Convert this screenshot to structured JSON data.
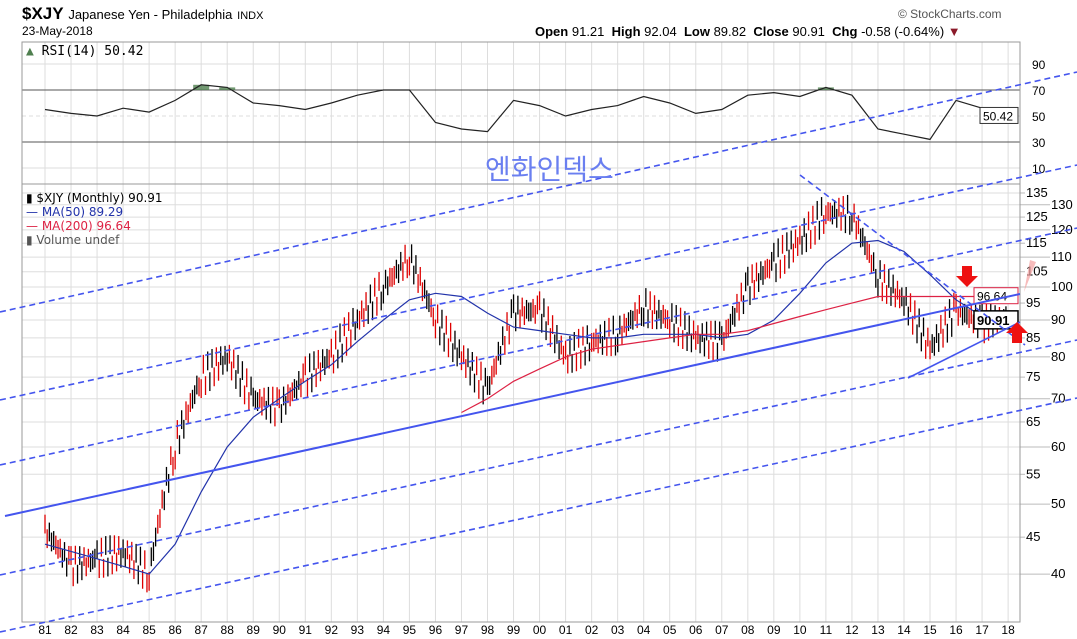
{
  "header": {
    "symbol": "$XJY",
    "name": "Japanese Yen - Philadelphia",
    "exchange": "INDX",
    "date": "23-May-2018",
    "watermark": "© StockCharts.com",
    "open_label": "Open",
    "open": "91.21",
    "high_label": "High",
    "high": "92.04",
    "low_label": "Low",
    "low": "89.82",
    "close_label": "Close",
    "close": "90.91",
    "chg_label": "Chg",
    "chg": "-0.58 (-0.64%)"
  },
  "annotation": "엔화인덱스",
  "colors": {
    "ma50": "#2233aa",
    "ma200": "#dd2244",
    "channel": "#4455ee",
    "up": "#000000",
    "down": "#dd0000",
    "rsi_fill": "#4f7f4f"
  },
  "chart_data": [
    {
      "type": "line",
      "title": "RSI(14) 50.42",
      "legend": "RSI(14) 50.42",
      "ylim": [
        0,
        100
      ],
      "yticks": [
        "90",
        "70",
        "50",
        "30",
        "10"
      ],
      "ytick_values": [
        90,
        70,
        50,
        30,
        10
      ],
      "last_label": "50.42",
      "x": [
        1981,
        1982,
        1983,
        1984,
        1985,
        1986,
        1987,
        1988,
        1989,
        1990,
        1991,
        1992,
        1993,
        1994,
        1995,
        1996,
        1997,
        1998,
        1999,
        2000,
        2001,
        2002,
        2003,
        2004,
        2005,
        2006,
        2007,
        2008,
        2009,
        2010,
        2011,
        2012,
        2013,
        2014,
        2015,
        2016,
        2017,
        2018
      ],
      "values": [
        55,
        52,
        50,
        56,
        53,
        62,
        74,
        72,
        60,
        58,
        55,
        60,
        66,
        70,
        70,
        45,
        40,
        38,
        62,
        58,
        50,
        55,
        58,
        65,
        60,
        52,
        55,
        66,
        68,
        65,
        72,
        66,
        40,
        36,
        32,
        62,
        56,
        50.42
      ]
    },
    {
      "type": "line",
      "title": "$XJY (Monthly) 90.91",
      "legend": [
        "$XJY (Monthly) 90.91",
        "MA(50) 89.29",
        "MA(200) 96.64",
        "Volume undef"
      ],
      "yscale": "log",
      "ylim": [
        33,
        140
      ],
      "yticks": [
        "135",
        "130",
        "125",
        "120",
        "115",
        "110",
        "105",
        "100",
        "95",
        "90",
        "85",
        "80",
        "75",
        "70",
        "65",
        "60",
        "55",
        "50",
        "45",
        "40"
      ],
      "ytick_values": [
        135,
        130,
        125,
        120,
        115,
        110,
        105,
        100,
        95,
        90,
        85,
        80,
        75,
        70,
        65,
        60,
        55,
        50,
        45,
        40
      ],
      "xticks": [
        "81",
        "82",
        "83",
        "84",
        "85",
        "86",
        "87",
        "88",
        "89",
        "90",
        "91",
        "92",
        "93",
        "94",
        "95",
        "96",
        "97",
        "98",
        "99",
        "00",
        "01",
        "02",
        "03",
        "04",
        "05",
        "06",
        "07",
        "08",
        "09",
        "10",
        "11",
        "12",
        "13",
        "14",
        "15",
        "16",
        "17",
        "18"
      ],
      "x": [
        1981,
        1982,
        1983,
        1984,
        1985,
        1986,
        1987,
        1988,
        1989,
        1990,
        1991,
        1992,
        1993,
        1994,
        1995,
        1996,
        1997,
        1998,
        1999,
        2000,
        2001,
        2002,
        2003,
        2004,
        2005,
        2006,
        2007,
        2008,
        2009,
        2010,
        2011,
        2012,
        2013,
        2014,
        2015,
        2016,
        2017,
        2018
      ],
      "close": [
        46,
        41,
        42,
        43,
        40,
        60,
        75,
        80,
        70,
        68,
        75,
        80,
        90,
        100,
        110,
        90,
        80,
        72,
        92,
        93,
        80,
        84,
        86,
        94,
        90,
        85,
        84,
        100,
        108,
        116,
        127,
        126,
        103,
        96,
        82,
        93,
        89,
        90.91
      ],
      "ma50": [
        44,
        43,
        42,
        41,
        40,
        44,
        52,
        60,
        66,
        70,
        74,
        78,
        84,
        90,
        96,
        98,
        97,
        92,
        88,
        87,
        86,
        85,
        85,
        86,
        86,
        86,
        85,
        86,
        90,
        98,
        108,
        115,
        116,
        112,
        104,
        96,
        91,
        89.29
      ],
      "ma200": [
        null,
        null,
        null,
        null,
        null,
        null,
        null,
        null,
        null,
        null,
        null,
        null,
        null,
        null,
        null,
        null,
        67,
        70,
        74,
        77,
        80,
        82,
        83,
        84,
        85,
        86,
        86,
        87,
        89,
        91,
        93,
        95,
        97,
        97,
        97,
        97,
        97,
        96.64
      ],
      "last_close_label": "90.91",
      "ma200_label": "96.64"
    }
  ]
}
